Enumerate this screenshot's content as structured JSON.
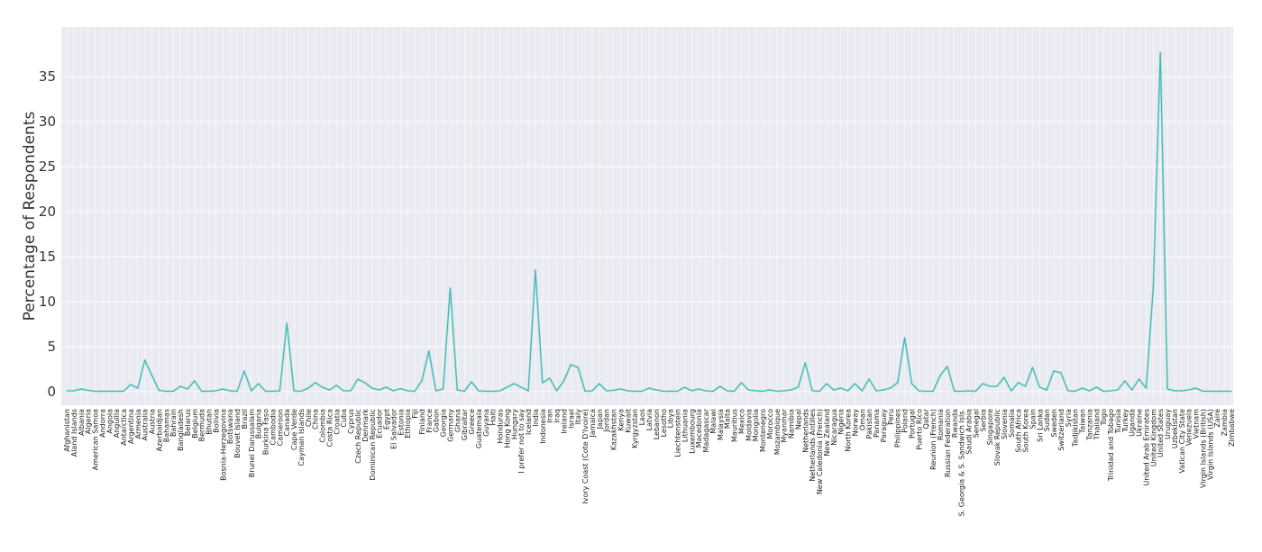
{
  "chart_data": {
    "type": "line",
    "title": "",
    "xlabel": "",
    "ylabel": "Percentage of Respondents",
    "ylim": [
      -1.5,
      40.5
    ],
    "yticks": [
      0,
      5,
      10,
      15,
      20,
      25,
      30,
      35
    ],
    "grid": true,
    "colors": {
      "background": "#eaeaf2",
      "grid": "#ffffff",
      "line": "#4ab3a8",
      "line_highlight": "#7fdde0"
    },
    "categories": [
      "Afghanistan",
      "Aland Islands",
      "Albania",
      "Algeria",
      "American Samoa",
      "Andorra",
      "Angola",
      "Anguilla",
      "Antarctica",
      "Argentina",
      "Armenia",
      "Australia",
      "Austria",
      "Azerbaidjan",
      "Bahamas",
      "Bahrain",
      "Bangladesh",
      "Belarus",
      "Belgium",
      "Bermuda",
      "Bhutan",
      "Bolivia",
      "Bosnia-Herzegovina",
      "Botswana",
      "Bouvet Island",
      "Brazil",
      "Brunei Darussalam",
      "Bulgaria",
      "Burkina Faso",
      "Cambodia",
      "Cameroon",
      "Canada",
      "Cape Verde",
      "Cayman Islands",
      "Chile",
      "China",
      "Colombia",
      "Costa Rica",
      "Croatia",
      "Cuba",
      "Cyprus",
      "Czech Republic",
      "Denmark",
      "Dominican Republic",
      "Ecuador",
      "Egypt",
      "El Salvador",
      "Estonia",
      "Ethiopia",
      "Fiji",
      "Finland",
      "France",
      "Gabon",
      "Georgia",
      "Germany",
      "Ghana",
      "Gibraltar",
      "Greece",
      "Guatemala",
      "Guyana",
      "Haiti",
      "Honduras",
      "Hong Kong",
      "Hungary",
      "I prefer not to say",
      "Iceland",
      "India",
      "Indonesia",
      "Iran",
      "Iraq",
      "Ireland",
      "Israel",
      "Italy",
      "Ivory Coast (Cote D'Ivoire)",
      "Jamaica",
      "Japan",
      "Jordan",
      "Kazakhstan",
      "Kenya",
      "Kuwait",
      "Kyrgyzstan",
      "Laos",
      "Latvia",
      "Lebanon",
      "Lesotho",
      "Libya",
      "Liechtenstein",
      "Lithuania",
      "Luxembourg",
      "Macedonia",
      "Madagascar",
      "Malawi",
      "Malaysia",
      "Malta",
      "Mauritius",
      "Mexico",
      "Moldavia",
      "Mongolia",
      "Montenegro",
      "Morocco",
      "Mozambique",
      "Myanmar",
      "Namibia",
      "Nepal",
      "Netherlands",
      "Netherlands Antilles",
      "New Caledonia (French)",
      "New Zealand",
      "Nicaragua",
      "Nigeria",
      "North Korea",
      "Norway",
      "Oman",
      "Pakistan",
      "Panama",
      "Paraguay",
      "Peru",
      "Philippines",
      "Poland",
      "Portugal",
      "Puerto Rico",
      "Qatar",
      "Reunion (French)",
      "Romania",
      "Russian Federation",
      "Rwanda",
      "S. Georgia & S. Sandwich Isls.",
      "Saudi Arabia",
      "Senegal",
      "Serbia",
      "Singapore",
      "Slovak Republic",
      "Slovenia",
      "Somalia",
      "South Africa",
      "South Korea",
      "Spain",
      "Sri Lanka",
      "Sudan",
      "Sweden",
      "Switzerland",
      "Syria",
      "Tadjikistan",
      "Taiwan",
      "Tanzania",
      "Thailand",
      "Togo",
      "Trinidad and Tobago",
      "Tunisia",
      "Turkey",
      "Uganda",
      "Ukraine",
      "United Arab Emirates",
      "United Kingdom",
      "United States",
      "Uruguay",
      "Uzbekistan",
      "Vatican City State",
      "Venezuela",
      "Vietnam",
      "Virgin Islands (British)",
      "Virgin Islands (USA)",
      "Zaire",
      "Zambia",
      "Zimbabwe"
    ],
    "series": [
      {
        "values": [
          0.1,
          0.1,
          0.3,
          0.15,
          0.05,
          0.05,
          0.05,
          0.05,
          0.05,
          0.8,
          0.4,
          3.5,
          1.8,
          0.15,
          0.05,
          0.05,
          0.6,
          0.3,
          1.2,
          0.05,
          0.05,
          0.1,
          0.3,
          0.1,
          0.05,
          2.3,
          0.1,
          0.9,
          0.05,
          0.05,
          0.1,
          7.6,
          0.1,
          0.05,
          0.4,
          1.0,
          0.5,
          0.2,
          0.7,
          0.1,
          0.1,
          1.4,
          1.0,
          0.4,
          0.2,
          0.5,
          0.1,
          0.35,
          0.1,
          0.05,
          1.2,
          4.5,
          0.1,
          0.3,
          11.5,
          0.2,
          0.05,
          1.1,
          0.1,
          0.05,
          0.05,
          0.1,
          0.5,
          0.9,
          0.5,
          0.1,
          13.5,
          1.0,
          1.5,
          0.1,
          1.2,
          3.0,
          2.7,
          0.05,
          0.1,
          0.9,
          0.1,
          0.15,
          0.3,
          0.1,
          0.05,
          0.05,
          0.4,
          0.2,
          0.05,
          0.05,
          0.05,
          0.5,
          0.1,
          0.3,
          0.1,
          0.05,
          0.6,
          0.1,
          0.05,
          1.0,
          0.2,
          0.1,
          0.05,
          0.2,
          0.05,
          0.1,
          0.2,
          0.5,
          3.2,
          0.1,
          0.05,
          0.9,
          0.2,
          0.4,
          0.1,
          0.9,
          0.1,
          1.4,
          0.1,
          0.2,
          0.4,
          1.0,
          6.0,
          0.9,
          0.1,
          0.05,
          0.05,
          1.8,
          2.8,
          0.05,
          0.05,
          0.1,
          0.05,
          0.9,
          0.6,
          0.6,
          1.6,
          0.1,
          1.0,
          0.6,
          2.7,
          0.5,
          0.2,
          2.3,
          2.1,
          0.1,
          0.05,
          0.4,
          0.1,
          0.5,
          0.05,
          0.1,
          0.2,
          1.2,
          0.2,
          1.4,
          0.4,
          11.5,
          37.7,
          0.3,
          0.1,
          0.1,
          0.2,
          0.4,
          0.05,
          0.05,
          0.05,
          0.05,
          0.05
        ]
      }
    ]
  }
}
